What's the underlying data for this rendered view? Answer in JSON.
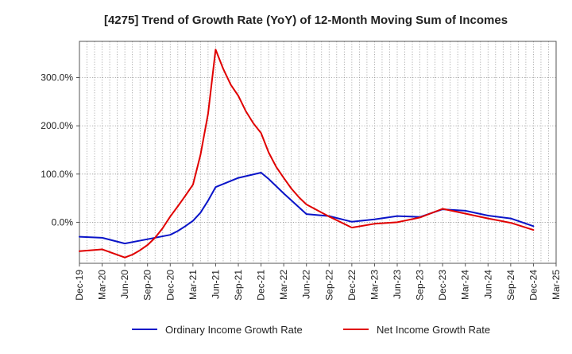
{
  "chart_data": {
    "type": "line",
    "title": "[4275]  Trend of Growth Rate (YoY) of 12-Month Moving Sum of Incomes",
    "xlabel": "",
    "ylabel": "",
    "x_tick_labels": [
      "Dec-19",
      "Mar-20",
      "Jun-20",
      "Sep-20",
      "Dec-20",
      "Mar-21",
      "Jun-21",
      "Sep-21",
      "Dec-21",
      "Mar-22",
      "Jun-22",
      "Sep-22",
      "Dec-22",
      "Mar-23",
      "Jun-23",
      "Sep-23",
      "Dec-23",
      "Mar-24",
      "Jun-24",
      "Sep-24",
      "Dec-24",
      "Mar-25"
    ],
    "y_ticks": [
      0,
      100,
      200,
      300
    ],
    "y_tick_labels": [
      "0.0%",
      "100.0%",
      "200.0%",
      "300.0%"
    ],
    "ylim": [
      -85,
      375
    ],
    "grid": true,
    "legend_position": "bottom",
    "series": [
      {
        "name": "Ordinary Income Growth Rate",
        "color": "#0a14c8",
        "values": [
          {
            "x": "Dec-19",
            "y": -30
          },
          {
            "x": "Mar-20",
            "y": -32
          },
          {
            "x": "Jun-20",
            "y": -44
          },
          {
            "x": "Sep-20",
            "y": -35
          },
          {
            "x": "Dec-20",
            "y": -26
          },
          {
            "x": "Jan-21",
            "y": -18
          },
          {
            "x": "Feb-21",
            "y": -8
          },
          {
            "x": "Mar-21",
            "y": 3
          },
          {
            "x": "Apr-21",
            "y": 20
          },
          {
            "x": "May-21",
            "y": 45
          },
          {
            "x": "Jun-21",
            "y": 73
          },
          {
            "x": "Sep-21",
            "y": 92
          },
          {
            "x": "Dec-21",
            "y": 103
          },
          {
            "x": "Jan-22",
            "y": 90
          },
          {
            "x": "Feb-22",
            "y": 75
          },
          {
            "x": "Mar-22",
            "y": 60
          },
          {
            "x": "Jun-22",
            "y": 17
          },
          {
            "x": "Sep-22",
            "y": 13
          },
          {
            "x": "Dec-22",
            "y": 1
          },
          {
            "x": "Mar-23",
            "y": 6
          },
          {
            "x": "Jun-23",
            "y": 13
          },
          {
            "x": "Sep-23",
            "y": 11
          },
          {
            "x": "Dec-23",
            "y": 27
          },
          {
            "x": "Mar-24",
            "y": 24
          },
          {
            "x": "Jun-24",
            "y": 14
          },
          {
            "x": "Sep-24",
            "y": 8
          },
          {
            "x": "Dec-24",
            "y": -8
          }
        ]
      },
      {
        "name": "Net Income Growth Rate",
        "color": "#e00000",
        "values": [
          {
            "x": "Dec-19",
            "y": -60
          },
          {
            "x": "Mar-20",
            "y": -56
          },
          {
            "x": "Jun-20",
            "y": -73
          },
          {
            "x": "Jul-20",
            "y": -67
          },
          {
            "x": "Aug-20",
            "y": -58
          },
          {
            "x": "Sep-20",
            "y": -47
          },
          {
            "x": "Oct-20",
            "y": -32
          },
          {
            "x": "Nov-20",
            "y": -12
          },
          {
            "x": "Dec-20",
            "y": 12
          },
          {
            "x": "Jan-21",
            "y": 33
          },
          {
            "x": "Feb-21",
            "y": 55
          },
          {
            "x": "Mar-21",
            "y": 78
          },
          {
            "x": "Apr-21",
            "y": 140
          },
          {
            "x": "May-21",
            "y": 225
          },
          {
            "x": "Jun-21",
            "y": 358
          },
          {
            "x": "Jul-21",
            "y": 318
          },
          {
            "x": "Aug-21",
            "y": 285
          },
          {
            "x": "Sep-21",
            "y": 262
          },
          {
            "x": "Oct-21",
            "y": 230
          },
          {
            "x": "Nov-21",
            "y": 205
          },
          {
            "x": "Dec-21",
            "y": 185
          },
          {
            "x": "Jan-22",
            "y": 145
          },
          {
            "x": "Feb-22",
            "y": 115
          },
          {
            "x": "Mar-22",
            "y": 92
          },
          {
            "x": "Apr-22",
            "y": 70
          },
          {
            "x": "May-22",
            "y": 52
          },
          {
            "x": "Jun-22",
            "y": 37
          },
          {
            "x": "Sep-22",
            "y": 12
          },
          {
            "x": "Dec-22",
            "y": -11
          },
          {
            "x": "Mar-23",
            "y": -3
          },
          {
            "x": "Jun-23",
            "y": 0
          },
          {
            "x": "Sep-23",
            "y": 10
          },
          {
            "x": "Dec-23",
            "y": 28
          },
          {
            "x": "Mar-24",
            "y": 18
          },
          {
            "x": "Jun-24",
            "y": 8
          },
          {
            "x": "Sep-24",
            "y": -1
          },
          {
            "x": "Dec-24",
            "y": -16
          }
        ]
      }
    ]
  }
}
